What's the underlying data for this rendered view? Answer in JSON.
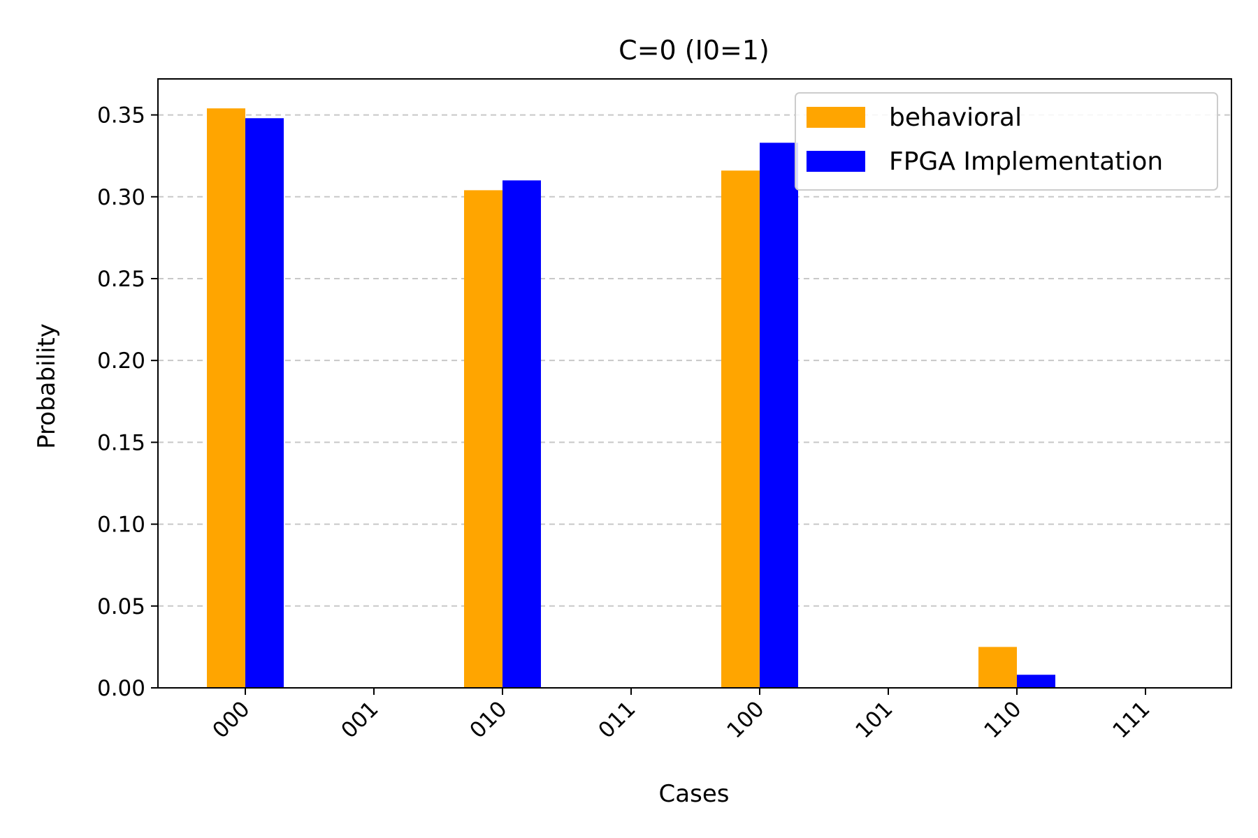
{
  "chart_data": {
    "type": "bar",
    "title": "C=0 (I0=1)",
    "xlabel": "Cases",
    "ylabel": "Probability",
    "categories": [
      "000",
      "001",
      "010",
      "011",
      "100",
      "101",
      "110",
      "111"
    ],
    "series": [
      {
        "name": "behavioral",
        "color": "#FFA500",
        "values": [
          0.354,
          0.0,
          0.304,
          0.0,
          0.316,
          0.0,
          0.025,
          0.0
        ]
      },
      {
        "name": "FPGA Implementation",
        "color": "#0000FF",
        "values": [
          0.348,
          0.0,
          0.31,
          0.0,
          0.333,
          0.0,
          0.008,
          0.0
        ]
      }
    ],
    "ylim": [
      0,
      0.372
    ],
    "yticks": [
      "0.00",
      "0.05",
      "0.10",
      "0.15",
      "0.20",
      "0.25",
      "0.30",
      "0.35"
    ],
    "grid": "y-dashed",
    "legend_position": "top-right"
  }
}
